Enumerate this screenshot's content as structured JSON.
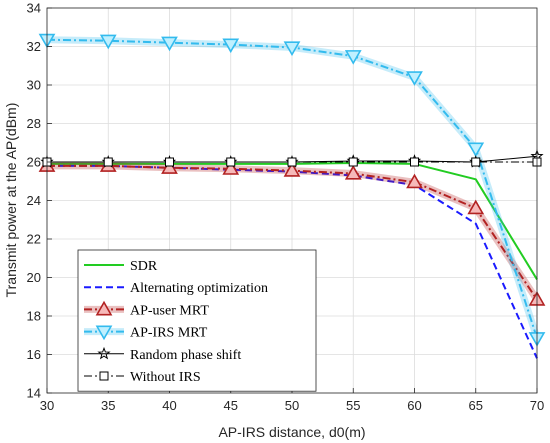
{
  "chart_data": {
    "type": "line",
    "xlabel": "AP-IRS distance, d0(m)",
    "ylabel": "Transmit power at the AP(dBm)",
    "x": [
      30,
      35,
      40,
      45,
      50,
      55,
      60,
      65,
      70
    ],
    "xlim": [
      30,
      70
    ],
    "ylim": [
      14,
      34
    ],
    "xticks": [
      30,
      35,
      40,
      45,
      50,
      55,
      60,
      65,
      70
    ],
    "yticks": [
      14,
      16,
      18,
      20,
      22,
      24,
      26,
      28,
      30,
      32,
      34
    ],
    "grid": true,
    "legend_position": "bottom-left",
    "series": [
      {
        "name": "SDR",
        "values": [
          25.9,
          25.9,
          25.9,
          25.9,
          25.9,
          25.95,
          25.9,
          25.1,
          19.9
        ],
        "color": "#22cc22",
        "dash": "solid",
        "marker": "none",
        "glow": false
      },
      {
        "name": "Alternating optimization",
        "values": [
          25.8,
          25.8,
          25.7,
          25.6,
          25.5,
          25.3,
          24.8,
          22.8,
          15.8
        ],
        "color": "#1a1aff",
        "dash": "dashed",
        "marker": "none",
        "glow": false
      },
      {
        "name": "AP-user MRT",
        "values": [
          25.8,
          25.8,
          25.7,
          25.65,
          25.55,
          25.4,
          24.95,
          23.6,
          18.85
        ],
        "color": "#b22222",
        "dash": "dashdot",
        "marker": "triangle-up",
        "glow": true
      },
      {
        "name": "AP-IRS MRT",
        "values": [
          32.35,
          32.3,
          32.2,
          32.1,
          31.95,
          31.5,
          30.4,
          26.7,
          16.85
        ],
        "color": "#33bbee",
        "dash": "dashdot",
        "marker": "triangle-down",
        "glow": true
      },
      {
        "name": "Random phase shift",
        "values": [
          26.0,
          26.0,
          26.0,
          26.0,
          26.0,
          26.05,
          26.05,
          26.0,
          26.3
        ],
        "color": "#000000",
        "dash": "solid",
        "marker": "star",
        "glow": false
      },
      {
        "name": "Without IRS",
        "values": [
          26.0,
          26.0,
          26.0,
          26.0,
          26.0,
          26.0,
          26.0,
          26.0,
          26.0
        ],
        "color": "#000000",
        "dash": "dashdot",
        "marker": "square",
        "glow": false
      }
    ]
  }
}
